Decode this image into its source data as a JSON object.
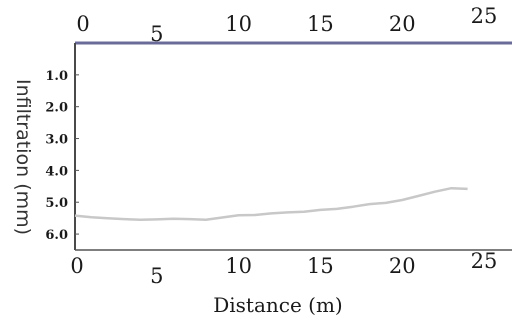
{
  "chart_data": {
    "type": "line",
    "title": "",
    "xlabel": "Distance (m)",
    "ylabel": "Infiltration (mm)",
    "xlim": [
      0,
      25
    ],
    "ylim": [
      0,
      6.5
    ],
    "y_inverted": true,
    "x_ticks": [
      "0",
      "5",
      "10",
      "15",
      "20",
      "25"
    ],
    "x_ticks_top": [
      "0",
      "5",
      "10",
      "15",
      "20",
      "25"
    ],
    "y_ticks": [
      "1.0",
      "2.0",
      "3.0",
      "4.0",
      "5.0",
      "6.0"
    ],
    "grid": false,
    "legend": "none",
    "colors": {
      "frame": "#6b6b9a",
      "line": "#c8c8c8",
      "text": "#1a1a1a"
    },
    "series": [
      {
        "x": [
          0,
          1,
          2,
          3,
          4,
          5,
          6,
          7,
          8,
          9,
          10,
          11,
          12,
          13,
          14,
          15,
          16,
          17,
          18,
          19,
          20,
          21,
          22,
          23,
          24
        ],
        "y": [
          5.42,
          5.47,
          5.5,
          5.53,
          5.55,
          5.54,
          5.52,
          5.53,
          5.55,
          5.48,
          5.41,
          5.4,
          5.35,
          5.32,
          5.3,
          5.24,
          5.21,
          5.14,
          5.06,
          5.02,
          4.93,
          4.8,
          4.67,
          4.56,
          4.58
        ]
      }
    ]
  }
}
